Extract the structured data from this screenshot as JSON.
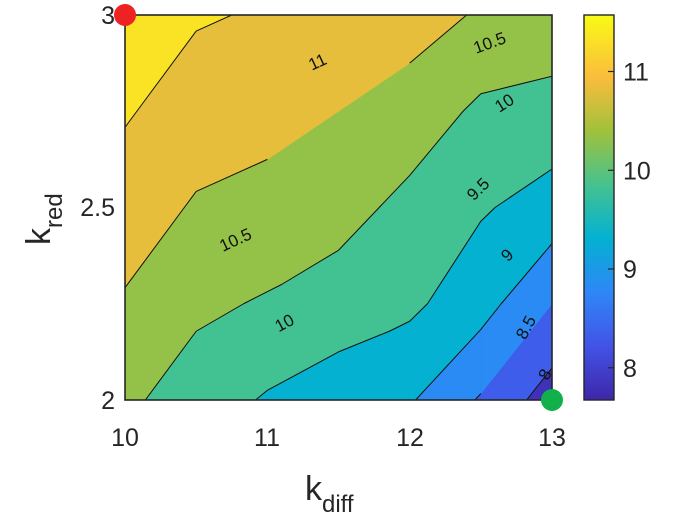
{
  "chart_data": {
    "type": "contour",
    "xlabel": {
      "main": "k",
      "sub": "diff"
    },
    "ylabel": {
      "main": "k",
      "sub": "red"
    },
    "xlim": [
      10,
      13
    ],
    "ylim": [
      2,
      3
    ],
    "xticks": [
      "10",
      "11",
      "12",
      "13"
    ],
    "yticks": [
      "2",
      "2.5",
      "3"
    ],
    "colorbar": {
      "range": [
        7.6,
        11.5
      ],
      "ticks": [
        "8",
        "9",
        "10",
        "11"
      ],
      "colormap": "parula"
    },
    "grid_x": [
      10,
      10.5,
      11,
      11.5,
      12,
      12.5,
      13
    ],
    "grid_y": [
      2,
      2.25,
      2.5,
      2.75,
      3
    ],
    "z": [
      [
        10.1,
        9.75,
        9.45,
        9.25,
        9.05,
        8.45,
        7.75
      ],
      [
        10.45,
        10.1,
        9.95,
        9.75,
        9.6,
        9.2,
        8.5
      ],
      [
        10.75,
        10.45,
        10.35,
        10.2,
        9.85,
        9.55,
        9.3
      ],
      [
        11.05,
        10.75,
        10.65,
        10.5,
        10.3,
        9.9,
        9.8
      ],
      [
        11.4,
        11.05,
        10.95,
        10.8,
        10.7,
        10.45,
        10.35
      ]
    ],
    "levels": [
      8,
      8.5,
      9,
      9.5,
      10,
      10.5,
      11
    ],
    "contour_labels": [
      "8",
      "8.5",
      "9",
      "9.5",
      "10",
      "10.5",
      "10",
      "10.5",
      "11"
    ],
    "markers": [
      {
        "name": "start",
        "x": 10,
        "y": 3,
        "color": "#ee2222"
      },
      {
        "name": "end",
        "x": 13,
        "y": 2,
        "color": "#11b04a"
      }
    ]
  }
}
